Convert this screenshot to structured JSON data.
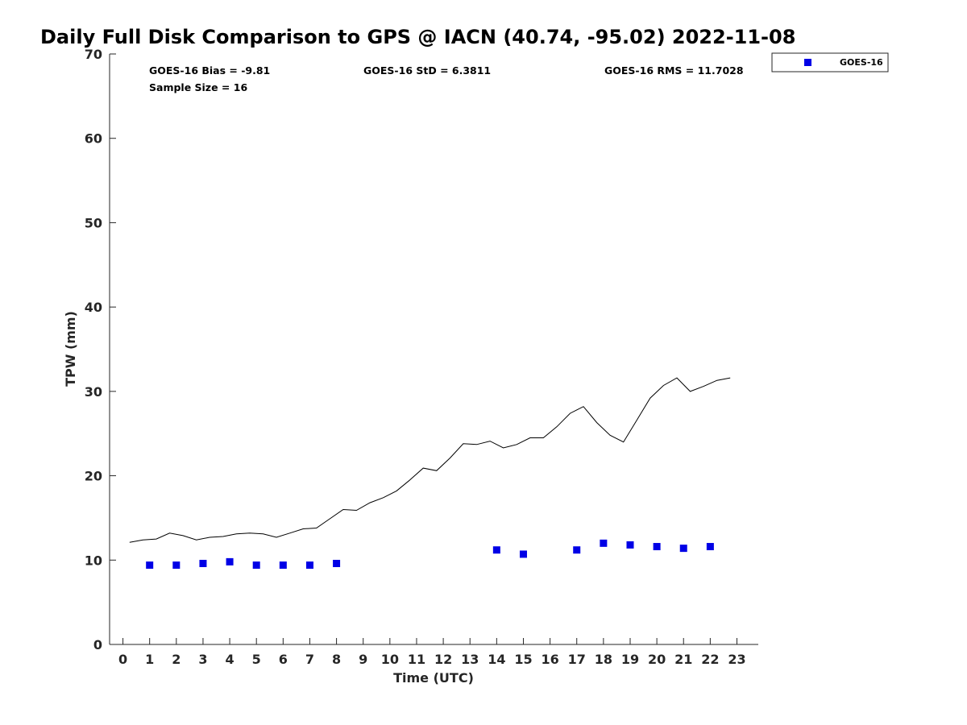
{
  "chart_data": {
    "type": "scatter",
    "title": "Daily Full Disk Comparison to GPS @ IACN (40.74, -95.02) 2022-11-08",
    "xlabel": "Time (UTC)",
    "ylabel": "TPW (mm)",
    "xlim": [
      -0.5,
      23.8
    ],
    "ylim": [
      0,
      70
    ],
    "xticks": [
      "0",
      "1",
      "2",
      "3",
      "4",
      "5",
      "6",
      "7",
      "8",
      "9",
      "10",
      "11",
      "12",
      "13",
      "14",
      "15",
      "16",
      "17",
      "18",
      "19",
      "20",
      "21",
      "22",
      "23"
    ],
    "yticks": [
      "0",
      "10",
      "20",
      "30",
      "40",
      "50",
      "60",
      "70"
    ],
    "grid": false,
    "legend_position": "top-right-outside",
    "stats": {
      "bias": "GOES-16 Bias = -9.81",
      "std": "GOES-16 StD = 6.3811",
      "rms": "GOES-16 RMS = 11.7028",
      "sample": "Sample Size = 16"
    },
    "series": [
      {
        "kind": "line",
        "color": "#000000",
        "x": [
          0.25,
          0.75,
          1.25,
          1.75,
          2.25,
          2.75,
          3.25,
          3.75,
          4.25,
          4.75,
          5.25,
          5.75,
          6.25,
          6.75,
          7.25,
          7.75,
          8.25,
          8.75,
          9.25,
          9.75,
          10.25,
          10.75,
          11.25,
          11.75,
          12.25,
          12.75,
          13.25,
          13.75,
          14.25,
          14.75,
          15.25,
          15.75,
          16.25,
          16.75,
          17.25,
          17.75,
          18.25,
          18.75,
          19.25,
          19.75,
          20.25,
          20.75,
          21.25,
          21.75,
          22.25,
          22.75
        ],
        "y": [
          12.1,
          12.4,
          12.5,
          13.2,
          12.9,
          12.4,
          12.7,
          12.8,
          13.1,
          13.2,
          13.1,
          12.7,
          13.2,
          13.7,
          13.8,
          14.9,
          16.0,
          15.9,
          16.8,
          17.4,
          18.2,
          19.5,
          20.9,
          20.6,
          22.1,
          23.8,
          23.7,
          24.1,
          23.3,
          23.7,
          24.5,
          24.5,
          25.8,
          27.4,
          28.2,
          26.3,
          24.8,
          24.0,
          26.6,
          29.2,
          30.7,
          31.6,
          30.0,
          30.6,
          31.3,
          31.6
        ]
      },
      {
        "kind": "scatter",
        "name": "GOES-16",
        "color": "#0000e6",
        "x": [
          1,
          2,
          3,
          4,
          5,
          6,
          7,
          8,
          14,
          15,
          17,
          18,
          19,
          20,
          21,
          22
        ],
        "y": [
          9.4,
          9.4,
          9.6,
          9.8,
          9.4,
          9.4,
          9.4,
          9.6,
          11.2,
          10.7,
          11.2,
          12.0,
          11.8,
          11.6,
          11.4,
          11.6
        ]
      }
    ]
  }
}
